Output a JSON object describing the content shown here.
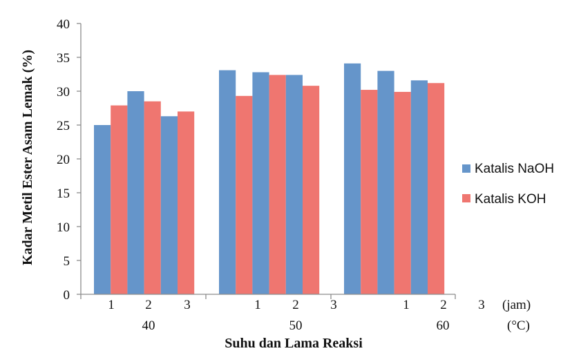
{
  "chart_data": {
    "type": "bar",
    "ylabel": "Kadar Metil Ester Asam Lemak  (%)",
    "xlabel": "Suhu dan Lama Reaksi",
    "ylim": [
      0,
      40
    ],
    "yticks": [
      "0",
      "5",
      "10",
      "15",
      "20",
      "25",
      "30",
      "35",
      "40"
    ],
    "grid": false,
    "legend_position": "right",
    "x_ticks_time": [
      "1",
      "2",
      "3",
      "1",
      "2",
      "3",
      "1",
      "2",
      "3"
    ],
    "x_ticks_temperature": [
      "40",
      "50",
      "60"
    ],
    "x_unit_time": "(jam)",
    "x_unit_temperature": "(°C)",
    "categories": [
      "40 °C, 1 jam",
      "40 °C, 2 jam",
      "40 °C, 3 jam",
      "50 °C, 1 jam",
      "50 °C, 2 jam",
      "50 °C, 3 jam",
      "60 °C, 1 jam",
      "60 °C, 2 jam",
      "60 °C, 3 jam"
    ],
    "series": [
      {
        "name": "Katalis NaOH",
        "color": "#6595ca",
        "values": [
          25.0,
          30.0,
          26.3,
          33.1,
          32.8,
          32.4,
          34.1,
          33.0,
          31.6
        ]
      },
      {
        "name": "Katalis KOH",
        "color": "#ef7670",
        "values": [
          27.9,
          28.5,
          27.0,
          29.3,
          32.4,
          30.8,
          30.2,
          29.9,
          31.2
        ]
      }
    ]
  }
}
